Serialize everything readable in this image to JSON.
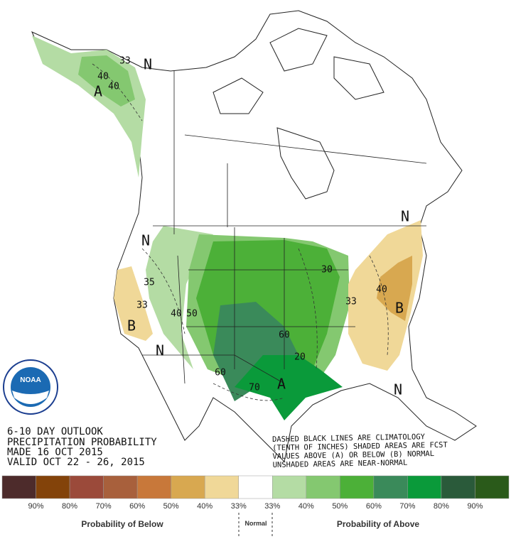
{
  "outlook": {
    "lines": [
      "6-10 DAY OUTLOOK",
      "PRECIPITATION PROBABILITY",
      "MADE  16 OCT 2015",
      "VALID  OCT 22 - 26, 2015"
    ]
  },
  "notes": [
    "DASHED BLACK LINES ARE CLIMATOLOGY",
    "(TENTH OF INCHES) SHADED AREAS ARE FCST",
    "VALUES ABOVE (A) OR BELOW (B) NORMAL",
    "UNSHADED AREAS ARE NEAR-NORMAL"
  ],
  "logo": "NOAA",
  "map_labels": [
    "33",
    "N",
    "40",
    "40",
    "A",
    "N",
    "35",
    "33",
    "B",
    "40",
    "50",
    "60",
    "70",
    "60",
    "A",
    "20",
    "30",
    "N",
    "33",
    "40",
    "B",
    "N",
    "N"
  ],
  "legend": {
    "labels": [
      "90%",
      "80%",
      "70%",
      "60%",
      "50%",
      "40%",
      "33%",
      "33%",
      "40%",
      "50%",
      "60%",
      "70%",
      "80%",
      "90%"
    ],
    "below": "Probability of Below",
    "normal": "Normal",
    "above": "Probability of Above"
  }
}
